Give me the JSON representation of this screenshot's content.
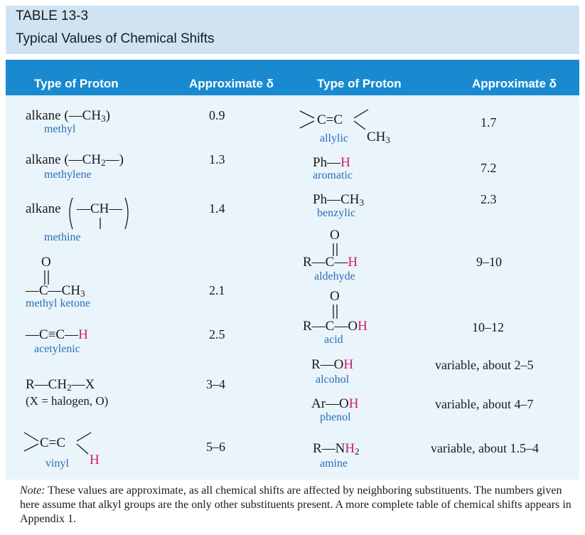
{
  "table": {
    "label": "TABLE 13-3",
    "title": "Typical Values of Chemical Shifts"
  },
  "columns": {
    "type_left": "Type of Proton",
    "delta_left": "Approximate δ",
    "type_right": "Type of Proton",
    "delta_right": "Approximate δ"
  },
  "left_rows": [
    {
      "formula_prefix": "alkane (",
      "formula_group": "—CH",
      "formula_sub": "3",
      "formula_suffix": ")",
      "name": "methyl",
      "value": "0.9"
    },
    {
      "formula_prefix": "alkane (",
      "formula_group": "—CH",
      "formula_sub": "2",
      "formula_suffix": "—)",
      "name": "methylene",
      "value": "1.3"
    },
    {
      "formula_prefix": "alkane",
      "formula_group": "—CH—",
      "name": "methine",
      "value": "1.4"
    },
    {
      "carbonyl_o": "O",
      "formula_group": "—C—CH",
      "formula_sub": "3",
      "name": "methyl ketone",
      "value": "2.1"
    },
    {
      "formula_group": "—C≡C—",
      "formula_h": "H",
      "name": "acetylenic",
      "value": "2.5"
    },
    {
      "formula_group": "R—CH",
      "formula_sub": "2",
      "formula_suffix": "—X",
      "name": "(X = halogen, O)",
      "value": "3–4"
    },
    {
      "formula_group": "C=C",
      "formula_h": "H",
      "name": "vinyl",
      "value": "5–6"
    }
  ],
  "right_rows": [
    {
      "formula_group": "C=C",
      "formula_ch3": "CH",
      "formula_sub": "3",
      "name": "allylic",
      "value": "1.7"
    },
    {
      "formula_group": "Ph—",
      "formula_h": "H",
      "name": "aromatic",
      "value": "7.2"
    },
    {
      "formula_group": "Ph—CH",
      "formula_sub": "3",
      "name": "benzylic",
      "value": "2.3"
    },
    {
      "carbonyl_o": "O",
      "formula_group": "R—C—",
      "formula_h": "H",
      "name": "aldehyde",
      "value": "9–10"
    },
    {
      "carbonyl_o": "O",
      "formula_group": "R—C—O",
      "formula_h": "H",
      "name": "acid",
      "value": "10–12"
    },
    {
      "formula_group": "R—O",
      "formula_h": "H",
      "name": "alcohol",
      "value": "variable, about 2–5"
    },
    {
      "formula_group": "Ar—O",
      "formula_h": "H",
      "name": "phenol",
      "value": "variable, about 4–7"
    },
    {
      "formula_group": "R—N",
      "formula_h": "H",
      "formula_sub": "2",
      "name": "amine",
      "value": "variable, about 1.5–4"
    }
  ],
  "note": {
    "label": "Note:",
    "text": " These values are approximate, as all chemical shifts are affected by neighboring substituents. The numbers given here assume that alkyl groups are the only other substituents present. A more complete table of chemical shifts appears in Appendix 1."
  },
  "colors": {
    "header_bg": "#1a8ad0",
    "title_bg": "#cfe3f3",
    "body_bg": "#eaf4fb",
    "highlight_h": "#d6187a",
    "name_blue": "#2a6db5"
  }
}
